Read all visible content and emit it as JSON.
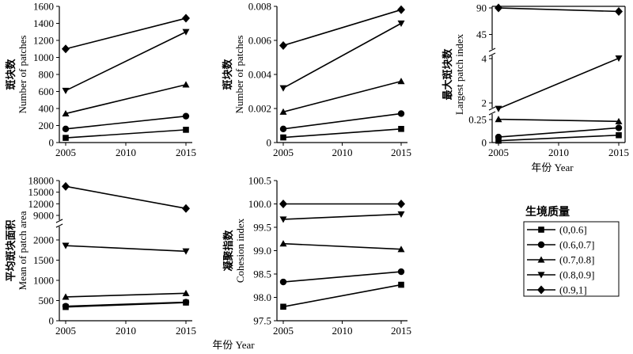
{
  "xlabel": "年份 Year",
  "legend": {
    "title": "生境质量",
    "items": [
      {
        "label": "(0,0.6]",
        "marker": "square"
      },
      {
        "label": "(0.6,0.7]",
        "marker": "circle"
      },
      {
        "label": "(0.7,0.8]",
        "marker": "triangle-up"
      },
      {
        "label": "(0.8,0.9]",
        "marker": "triangle-down"
      },
      {
        "label": "(0.9,1]",
        "marker": "diamond"
      }
    ]
  },
  "chart_data": [
    {
      "type": "line",
      "ylabel_cn": "斑块数",
      "ylabel_en": "Number of patches",
      "x": [
        2005,
        2015
      ],
      "x_ticks": [
        "2005",
        "2010",
        "2015"
      ],
      "y_ticks": [
        "0",
        "200",
        "400",
        "600",
        "800",
        "1000",
        "1200",
        "1400",
        "1600"
      ],
      "ylim": [
        0,
        1600
      ],
      "series": [
        {
          "name": "(0,0.6]",
          "values": [
            55,
            150
          ]
        },
        {
          "name": "(0.6,0.7]",
          "values": [
            160,
            310
          ]
        },
        {
          "name": "(0.7,0.8]",
          "values": [
            340,
            680
          ]
        },
        {
          "name": "(0.8,0.9]",
          "values": [
            610,
            1300
          ]
        },
        {
          "name": "(0.9,1]",
          "values": [
            1100,
            1460
          ]
        }
      ]
    },
    {
      "type": "line",
      "ylabel_cn": "斑块数",
      "ylabel_en": "Number of patches",
      "x": [
        2005,
        2015
      ],
      "x_ticks": [
        "2005",
        "2010",
        "2015"
      ],
      "y_ticks": [
        "0",
        "0.002",
        "0.004",
        "0.006",
        "0.008"
      ],
      "ylim": [
        0,
        0.008
      ],
      "series": [
        {
          "name": "(0,0.6]",
          "values": [
            0.0003,
            0.0008
          ]
        },
        {
          "name": "(0.6,0.7]",
          "values": [
            0.0008,
            0.0017
          ]
        },
        {
          "name": "(0.7,0.8]",
          "values": [
            0.0018,
            0.0036
          ]
        },
        {
          "name": "(0.8,0.9]",
          "values": [
            0.0032,
            0.007
          ]
        },
        {
          "name": "(0.9,1]",
          "values": [
            0.0057,
            0.0078
          ]
        }
      ]
    },
    {
      "type": "line",
      "ylabel_cn": "最大斑块数",
      "ylabel_en": "Largest patch index",
      "x": [
        2005,
        2015
      ],
      "x_ticks": [
        "2005",
        "2010",
        "2015"
      ],
      "y_ticks": [
        "0",
        "0.25",
        "2",
        "4",
        "45",
        "90"
      ],
      "broken_axis": true,
      "series": [
        {
          "name": "(0,0.6]",
          "values": [
            0.02,
            0.08
          ]
        },
        {
          "name": "(0.6,0.7]",
          "values": [
            0.06,
            0.16
          ]
        },
        {
          "name": "(0.7,0.8]",
          "values": [
            0.28,
            0.23
          ]
        },
        {
          "name": "(0.8,0.9]",
          "values": [
            1.4,
            4.6
          ]
        },
        {
          "name": "(0.9,1]",
          "values": [
            90,
            84
          ]
        }
      ]
    },
    {
      "type": "line",
      "ylabel_cn": "平均斑块面积",
      "ylabel_en": "Mean of patch area",
      "x": [
        2005,
        2015
      ],
      "x_ticks": [
        "2005",
        "2010",
        "2015"
      ],
      "y_ticks": [
        "0",
        "500",
        "1000",
        "1500",
        "2000",
        "9000",
        "12000",
        "15000",
        "18000"
      ],
      "broken_axis": true,
      "series": [
        {
          "name": "(0,0.6]",
          "values": [
            340,
            450
          ]
        },
        {
          "name": "(0.6,0.7]",
          "values": [
            360,
            460
          ]
        },
        {
          "name": "(0.7,0.8]",
          "values": [
            590,
            680
          ]
        },
        {
          "name": "(0.8,0.9]",
          "values": [
            1860,
            1720
          ]
        },
        {
          "name": "(0.9,1]",
          "values": [
            16500,
            10800
          ]
        }
      ]
    },
    {
      "type": "line",
      "ylabel_cn": "凝聚指数",
      "ylabel_en": "Cohesion index",
      "x": [
        2005,
        2015
      ],
      "x_ticks": [
        "2005",
        "2010",
        "2015"
      ],
      "y_ticks": [
        "97.5",
        "98.0",
        "98.5",
        "99.0",
        "99.5",
        "100.0",
        "100.5"
      ],
      "ylim": [
        97.5,
        100.5
      ],
      "series": [
        {
          "name": "(0,0.6]",
          "values": [
            97.8,
            98.27
          ]
        },
        {
          "name": "(0.6,0.7]",
          "values": [
            98.33,
            98.55
          ]
        },
        {
          "name": "(0.7,0.8]",
          "values": [
            99.15,
            99.03
          ]
        },
        {
          "name": "(0.8,0.9]",
          "values": [
            99.67,
            99.78
          ]
        },
        {
          "name": "(0.9,1]",
          "values": [
            100.0,
            100.0
          ]
        }
      ]
    }
  ]
}
